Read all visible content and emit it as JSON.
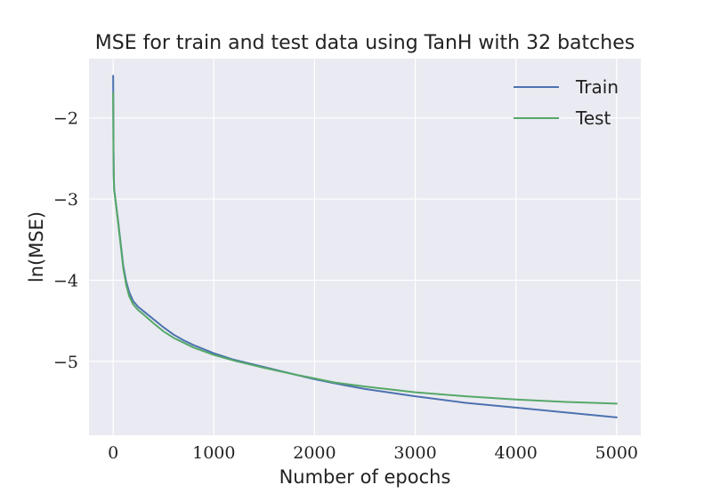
{
  "chart_data": {
    "type": "line",
    "title": "MSE for train and test data using TanH with 32 batches",
    "xlabel": "Number of epochs",
    "ylabel": "ln(MSE)",
    "xlim": [
      -240,
      5240
    ],
    "ylim": [
      -5.91,
      -1.27
    ],
    "x_ticks": [
      0,
      1000,
      2000,
      3000,
      4000,
      5000
    ],
    "x_tick_labels": [
      "0",
      "1000",
      "2000",
      "3000",
      "4000",
      "5000"
    ],
    "y_ticks": [
      -2,
      -3,
      -4,
      -5
    ],
    "y_tick_labels": [
      "−2",
      "−3",
      "−4",
      "−5"
    ],
    "grid": true,
    "legend_position": "top-right",
    "series": [
      {
        "name": "Train",
        "color": "#4c72b0",
        "x": [
          0,
          1,
          3,
          6,
          10,
          20,
          30,
          50,
          75,
          100,
          130,
          160,
          200,
          250,
          300,
          400,
          500,
          600,
          700,
          800,
          1000,
          1200,
          1500,
          1800,
          2000,
          2200,
          2500,
          3000,
          3500,
          4000,
          4500,
          5000
        ],
        "y": [
          -1.48,
          -1.75,
          -2.3,
          -2.7,
          -2.88,
          -2.98,
          -3.08,
          -3.28,
          -3.55,
          -3.82,
          -4.02,
          -4.15,
          -4.26,
          -4.33,
          -4.38,
          -4.48,
          -4.58,
          -4.67,
          -4.74,
          -4.8,
          -4.9,
          -4.98,
          -5.07,
          -5.16,
          -5.22,
          -5.27,
          -5.34,
          -5.43,
          -5.51,
          -5.57,
          -5.63,
          -5.69
        ]
      },
      {
        "name": "Test",
        "color": "#55a868",
        "x": [
          0,
          1,
          3,
          6,
          10,
          20,
          30,
          50,
          75,
          100,
          130,
          160,
          200,
          250,
          300,
          400,
          500,
          600,
          700,
          800,
          1000,
          1200,
          1500,
          1800,
          2000,
          2200,
          2500,
          3000,
          3500,
          4000,
          4500,
          5000
        ],
        "y": [
          -1.69,
          -1.95,
          -2.4,
          -2.75,
          -2.9,
          -2.99,
          -3.09,
          -3.3,
          -3.57,
          -3.85,
          -4.06,
          -4.2,
          -4.3,
          -4.37,
          -4.42,
          -4.53,
          -4.63,
          -4.71,
          -4.77,
          -4.83,
          -4.92,
          -4.99,
          -5.08,
          -5.16,
          -5.21,
          -5.26,
          -5.31,
          -5.38,
          -5.43,
          -5.47,
          -5.5,
          -5.52
        ]
      }
    ]
  }
}
